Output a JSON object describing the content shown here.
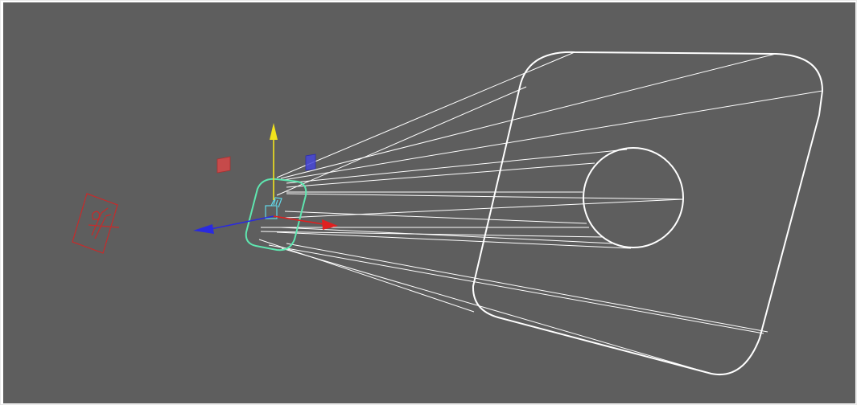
{
  "viewport": {
    "background_color": "#5e5e5e",
    "wire_color": "#ffffff",
    "selection_color": "#5fe6b0",
    "camera_icon_color": "#63d9ea",
    "locator_color": "#c72b2b"
  },
  "gizmo": {
    "x_axis_color": "#e02020",
    "y_axis_color": "#f2e31d",
    "z_axis_color": "#2a2adf",
    "plane_xy_color": "#d84646",
    "plane_yz_color": "#4646d8",
    "icons": [
      "move-manipulator-icon",
      "camera-icon",
      "locator-icon"
    ]
  }
}
